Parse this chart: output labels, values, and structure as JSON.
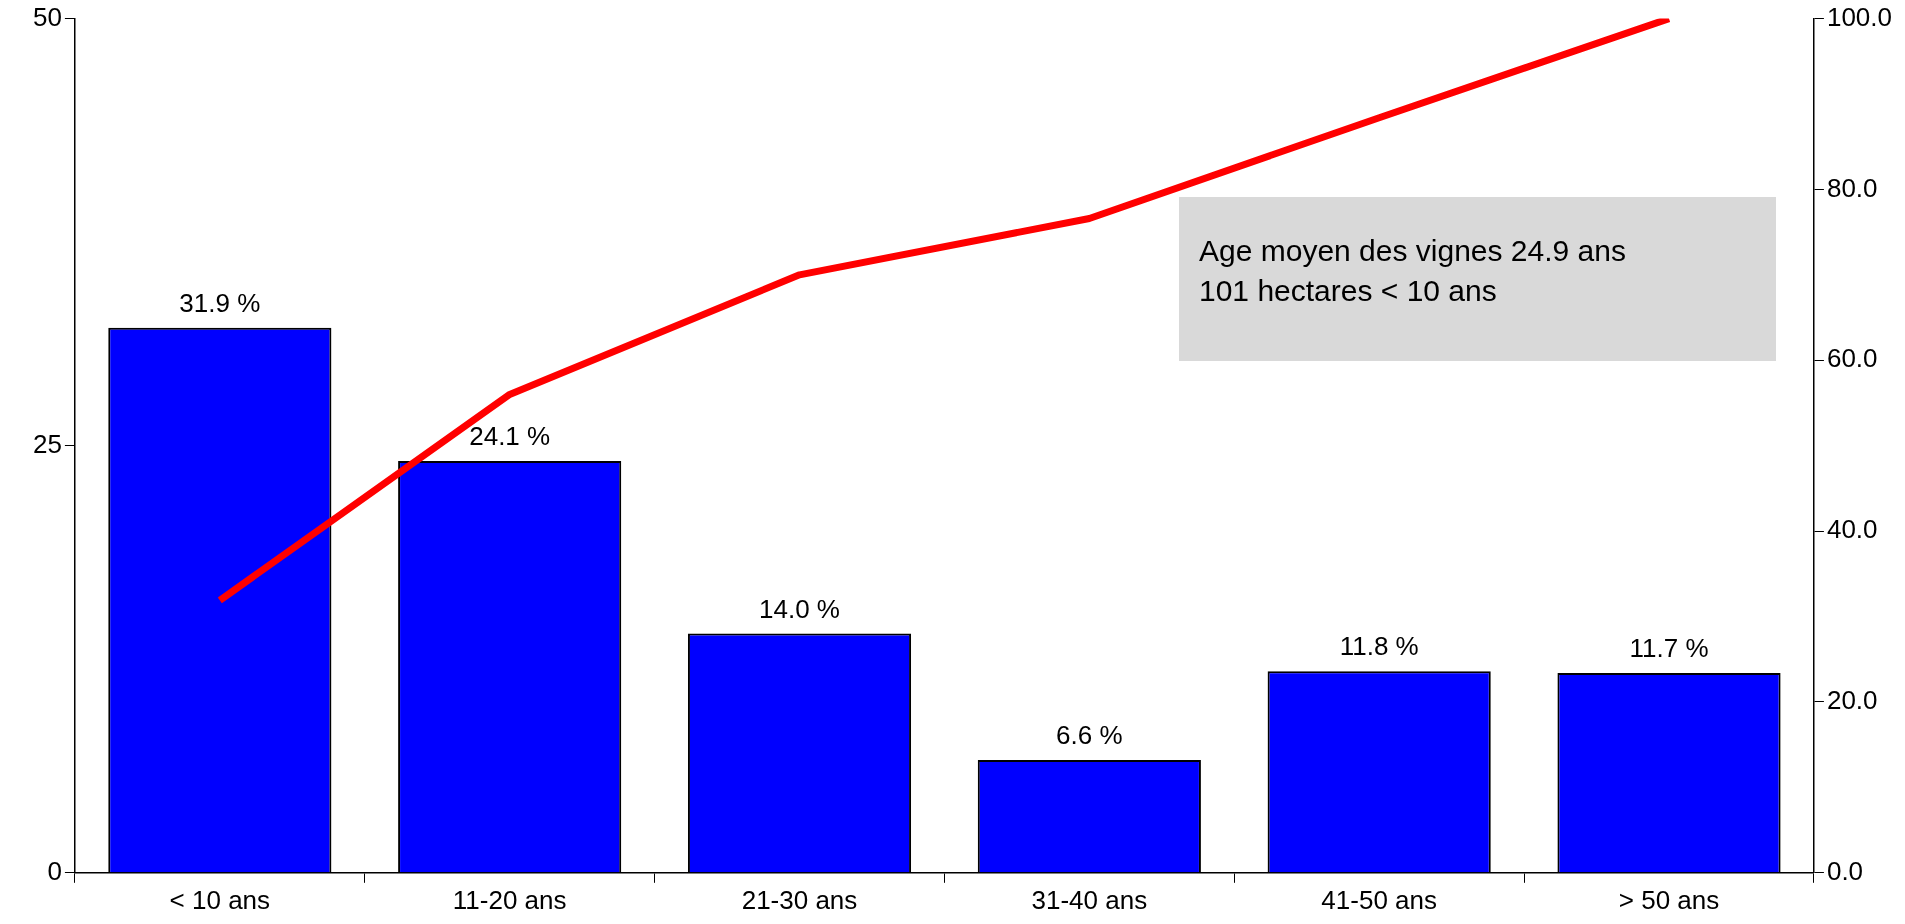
{
  "chart_data": {
    "type": "bar",
    "categories": [
      "< 10 ans",
      "11-20 ans",
      "21-30 ans",
      "31-40 ans",
      "41-50 ans",
      "> 50 ans"
    ],
    "series": [
      {
        "color": "#0000ff",
        "values": [
          31.9,
          24.1,
          14.0,
          6.6,
          11.8,
          11.7
        ],
        "value_labels": [
          "31.9 %",
          "24.1 %",
          "14.0 %",
          "6.6 %",
          "11.8 %",
          "11.7 %"
        ]
      },
      {
        "type": "line",
        "axis": "y2",
        "color": "#ff0000",
        "values": [
          31.9,
          56.0,
          70.0,
          76.6,
          88.4,
          100.0
        ]
      }
    ],
    "ylim": [
      0,
      50
    ],
    "yticks": [
      0,
      25,
      50
    ],
    "y2lim": [
      0,
      100
    ],
    "y2ticks": [
      {
        "value": 0,
        "label": "0.0"
      },
      {
        "value": 20,
        "label": "20.0"
      },
      {
        "value": 40,
        "label": "40.0"
      },
      {
        "value": 60,
        "label": "60.0"
      },
      {
        "value": 80,
        "label": "80.0"
      },
      {
        "value": 100,
        "label": "100.0"
      }
    ],
    "annotations": [
      "Age moyen des vignes 24.9 ans",
      "101 hectares < 10 ans"
    ],
    "grid": false,
    "legend": false,
    "marker": "none",
    "line_style": "solid"
  }
}
